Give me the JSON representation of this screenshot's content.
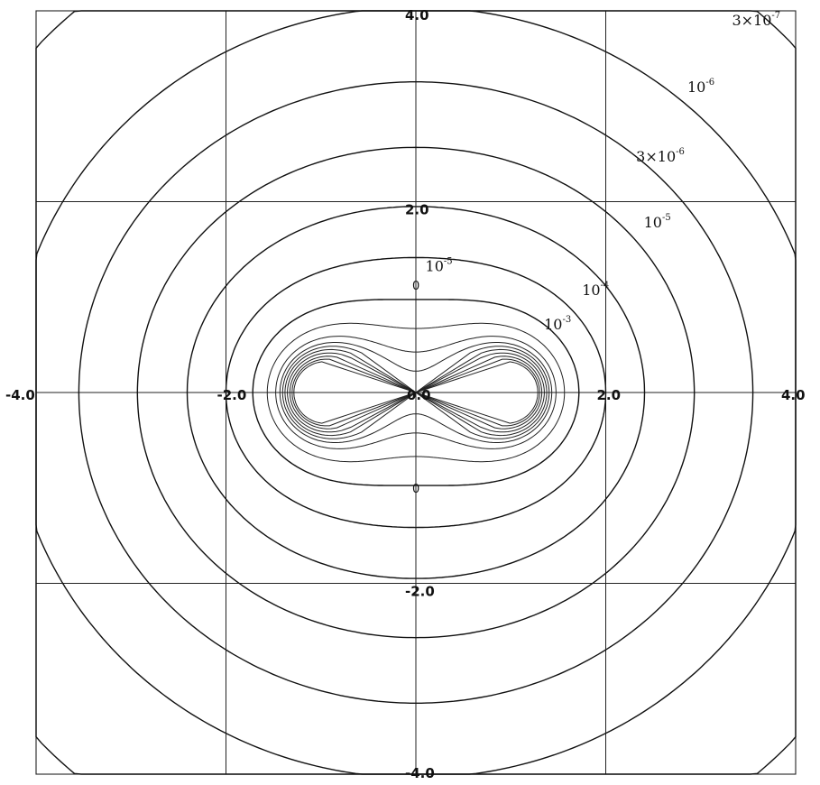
{
  "chart_data": {
    "type": "contour",
    "title": "",
    "xlabel": "",
    "ylabel": "",
    "xlim": [
      -4.0,
      4.0
    ],
    "ylim": [
      -4.0,
      4.0
    ],
    "grid": true,
    "grid_values": [
      -2.0,
      0.0,
      2.0
    ],
    "x_tick_labels": [
      {
        "value": -4.0,
        "text": "-4.0"
      },
      {
        "value": -2.0,
        "text": "-2.0"
      },
      {
        "value": 0.0,
        "text": "0.0"
      },
      {
        "value": 2.0,
        "text": "2.0"
      },
      {
        "value": 4.0,
        "text": "4.0"
      }
    ],
    "y_tick_labels": [
      {
        "value": 4.0,
        "text": "4.0"
      },
      {
        "value": 2.0,
        "text": "2.0"
      },
      {
        "value": -2.0,
        "text": "-2.0"
      },
      {
        "value": -4.0,
        "text": "-4.0"
      }
    ],
    "source_points": [
      {
        "x": -1.0,
        "y": 0.0
      },
      {
        "x": 1.0,
        "y": 0.0
      }
    ],
    "contour_levels": [
      {
        "level": 3e-07,
        "label": "3×10",
        "exponent": "-7"
      },
      {
        "level": 1e-06,
        "label": "10",
        "exponent": "-6"
      },
      {
        "level": 3e-06,
        "label": "3×10",
        "exponent": "-6"
      },
      {
        "level": 1e-05,
        "label": "10",
        "exponent": "-5"
      },
      {
        "level": 1e-05,
        "label": "10",
        "exponent": "-5"
      },
      {
        "level": 0.0001,
        "label": "10",
        "exponent": "-4"
      },
      {
        "level": 0.001,
        "label": "10",
        "exponent": "-3"
      }
    ],
    "zero_marks": [
      "0",
      "0"
    ]
  }
}
